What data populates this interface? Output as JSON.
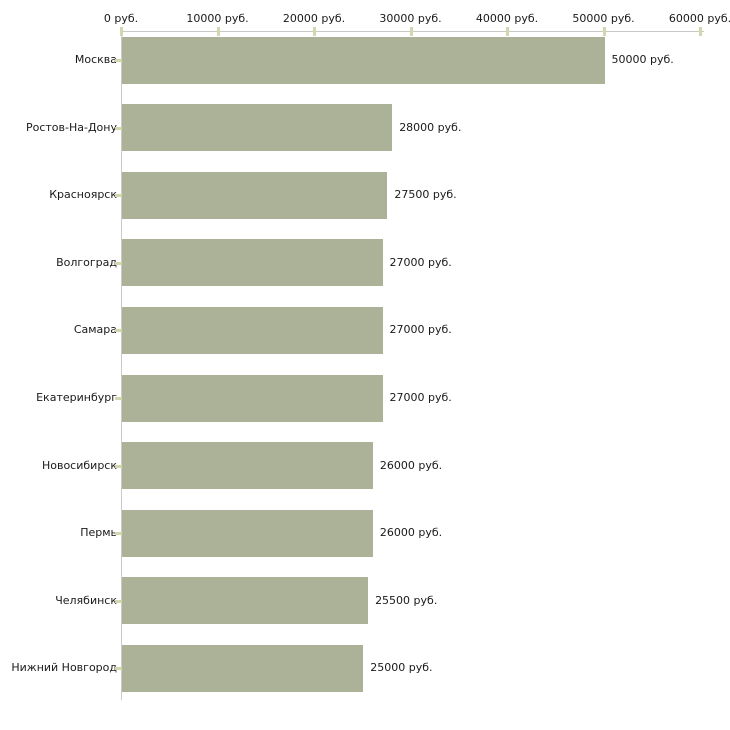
{
  "page": {
    "background": "#ffffff"
  },
  "chart_data": {
    "type": "bar",
    "orientation": "horizontal",
    "title": "",
    "xlabel": "",
    "ylabel": "",
    "unit": "руб.",
    "categories": [
      "Москва",
      "Ростов-На-Дону",
      "Красноярск",
      "Волгоград",
      "Самара",
      "Екатеринбург",
      "Новосибирск",
      "Пермь",
      "Челябинск",
      "Нижний Новгород"
    ],
    "values": [
      50000,
      28000,
      27500,
      27000,
      27000,
      27000,
      26000,
      26000,
      25500,
      25000
    ],
    "value_labels": [
      "50000 руб.",
      "28000 руб.",
      "27500 руб.",
      "27000 руб.",
      "27000 руб.",
      "27000 руб.",
      "26000 руб.",
      "26000 руб.",
      "25500 руб.",
      "25000 руб."
    ],
    "x_ticks": [
      {
        "value": 0,
        "label": "0 руб."
      },
      {
        "value": 10000,
        "label": "10000 руб."
      },
      {
        "value": 20000,
        "label": "20000 руб."
      },
      {
        "value": 30000,
        "label": "30000 руб."
      },
      {
        "value": 40000,
        "label": "40000 руб."
      },
      {
        "value": 50000,
        "label": "50000 руб."
      },
      {
        "value": 60000,
        "label": "60000 руб."
      }
    ],
    "xlim": [
      0,
      60000
    ],
    "grid": false,
    "legend": null,
    "colors": {
      "bar": "#acb297",
      "axis_line": "#c9c9c9",
      "tick_mark": "#d3d6ae",
      "text": "#1a1a1a",
      "background": "#ffffff"
    }
  }
}
